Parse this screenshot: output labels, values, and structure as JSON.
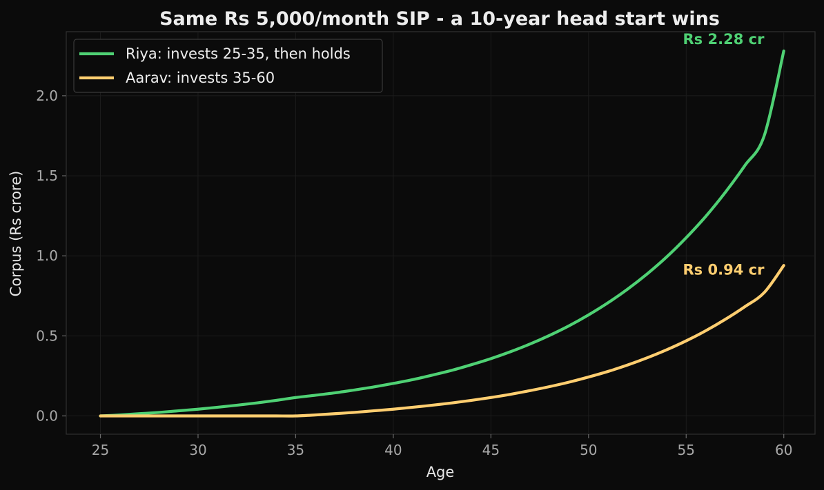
{
  "chart_data": {
    "type": "line",
    "title": "Same Rs 5,000/month SIP - a 10-year head start wins",
    "xlabel": "Age",
    "ylabel": "Corpus (Rs crore)",
    "xlim": [
      23.25,
      61.6
    ],
    "ylim": [
      -0.114,
      2.4
    ],
    "xticks": [
      25,
      30,
      35,
      40,
      45,
      50,
      55,
      60
    ],
    "xtick_labels": [
      "25",
      "30",
      "35",
      "40",
      "45",
      "50",
      "55",
      "60"
    ],
    "yticks": [
      0.0,
      0.5,
      1.0,
      1.5,
      2.0
    ],
    "ytick_labels": [
      "0.0",
      "0.5",
      "1.0",
      "1.5",
      "2.0"
    ],
    "grid": true,
    "legend_position": "top-left",
    "background": "#0b0b0b",
    "series": [
      {
        "name": "Riya: invests 25-35, then holds",
        "color": "#4fd174",
        "x": [
          25,
          26,
          27,
          28,
          29,
          30,
          31,
          32,
          33,
          34,
          35,
          36,
          37,
          38,
          39,
          40,
          41,
          42,
          43,
          44,
          45,
          46,
          47,
          48,
          49,
          50,
          51,
          52,
          53,
          54,
          55,
          56,
          57,
          58,
          59,
          60
        ],
        "y": [
          0.0,
          0.006,
          0.014,
          0.022,
          0.032,
          0.042,
          0.054,
          0.067,
          0.081,
          0.097,
          0.115,
          0.129,
          0.144,
          0.162,
          0.181,
          0.203,
          0.227,
          0.255,
          0.285,
          0.32,
          0.358,
          0.401,
          0.449,
          0.503,
          0.563,
          0.631,
          0.707,
          0.792,
          0.887,
          0.993,
          1.113,
          1.246,
          1.396,
          1.563,
          1.751,
          2.28
        ]
      },
      {
        "name": "Aarav: invests 35-60",
        "color": "#ffce70",
        "x": [
          25,
          26,
          27,
          28,
          29,
          30,
          31,
          32,
          33,
          34,
          35,
          36,
          37,
          38,
          39,
          40,
          41,
          42,
          43,
          44,
          45,
          46,
          47,
          48,
          49,
          50,
          51,
          52,
          53,
          54,
          55,
          56,
          57,
          58,
          59,
          60
        ],
        "y": [
          0.0,
          0.0,
          0.0,
          0.0,
          0.0,
          0.0,
          0.0,
          0.0,
          0.0,
          0.0,
          0.0,
          0.006,
          0.014,
          0.022,
          0.032,
          0.042,
          0.054,
          0.067,
          0.081,
          0.097,
          0.115,
          0.135,
          0.158,
          0.183,
          0.211,
          0.243,
          0.278,
          0.318,
          0.363,
          0.413,
          0.469,
          0.532,
          0.603,
          0.682,
          0.771,
          0.94
        ]
      }
    ],
    "annotations": [
      {
        "text": "Rs 2.28 cr",
        "color": "#4fd174",
        "x": 59.0,
        "y": 2.28
      },
      {
        "text": "Rs 0.94 cr",
        "color": "#ffce70",
        "x": 59.0,
        "y": 0.84
      }
    ]
  }
}
